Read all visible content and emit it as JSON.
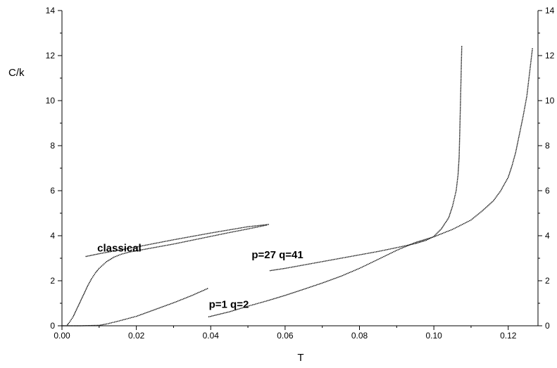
{
  "chart_data": {
    "type": "scatter",
    "xlabel": "T",
    "ylabel": "C/k",
    "xlim": [
      0,
      0.128
    ],
    "ylim": [
      0,
      14
    ],
    "x_ticks": [
      "0.00",
      "0.02",
      "0.04",
      "0.06",
      "0.08",
      "0.10",
      "0.12"
    ],
    "y_ticks": [
      "0",
      "2",
      "4",
      "6",
      "8",
      "10",
      "12",
      "14"
    ],
    "right_y_ticks": [
      "0",
      "2",
      "4",
      "6",
      "8",
      "10",
      "12",
      "14"
    ],
    "grid": false,
    "annotations": [
      {
        "text": "classical",
        "x": 0.0095,
        "y": 3.3
      },
      {
        "text": "p=27 q=41",
        "x": 0.051,
        "y": 3.0
      },
      {
        "text": "p=1 q=2",
        "x": 0.0395,
        "y": 0.8
      }
    ],
    "series": [
      {
        "points": [
          [
            0.0065,
            3.08
          ],
          [
            0.01,
            3.2
          ],
          [
            0.015,
            3.35
          ],
          [
            0.02,
            3.5
          ],
          [
            0.025,
            3.66
          ],
          [
            0.03,
            3.82
          ],
          [
            0.035,
            3.97
          ],
          [
            0.04,
            4.12
          ],
          [
            0.045,
            4.26
          ],
          [
            0.05,
            4.4
          ],
          [
            0.0555,
            4.5
          ]
        ]
      },
      {
        "points": [
          [
            0.0015,
            0.05
          ],
          [
            0.002,
            0.15
          ],
          [
            0.003,
            0.4
          ],
          [
            0.004,
            0.75
          ],
          [
            0.005,
            1.1
          ],
          [
            0.006,
            1.45
          ],
          [
            0.007,
            1.8
          ],
          [
            0.008,
            2.1
          ],
          [
            0.009,
            2.35
          ],
          [
            0.01,
            2.55
          ],
          [
            0.012,
            2.85
          ],
          [
            0.014,
            3.05
          ],
          [
            0.016,
            3.18
          ],
          [
            0.018,
            3.27
          ],
          [
            0.02,
            3.33
          ],
          [
            0.025,
            3.48
          ],
          [
            0.03,
            3.63
          ],
          [
            0.035,
            3.8
          ],
          [
            0.04,
            3.97
          ],
          [
            0.045,
            4.14
          ],
          [
            0.05,
            4.3
          ],
          [
            0.055,
            4.47
          ]
        ]
      },
      {
        "points": [
          [
            0.056,
            2.45
          ],
          [
            0.06,
            2.55
          ],
          [
            0.065,
            2.7
          ],
          [
            0.07,
            2.85
          ],
          [
            0.075,
            3.0
          ],
          [
            0.08,
            3.15
          ],
          [
            0.085,
            3.3
          ],
          [
            0.09,
            3.47
          ],
          [
            0.095,
            3.65
          ],
          [
            0.098,
            3.8
          ],
          [
            0.1,
            3.97
          ],
          [
            0.102,
            4.3
          ],
          [
            0.104,
            4.8
          ],
          [
            0.105,
            5.3
          ],
          [
            0.106,
            6.0
          ],
          [
            0.1065,
            6.7
          ],
          [
            0.1068,
            7.5
          ],
          [
            0.107,
            8.8
          ],
          [
            0.1075,
            12.4
          ]
        ]
      },
      {
        "points": [
          [
            0.0,
            0.0
          ],
          [
            0.005,
            0.0
          ],
          [
            0.01,
            0.02
          ],
          [
            0.012,
            0.08
          ],
          [
            0.015,
            0.2
          ],
          [
            0.02,
            0.42
          ],
          [
            0.025,
            0.72
          ],
          [
            0.03,
            1.02
          ],
          [
            0.035,
            1.35
          ],
          [
            0.0395,
            1.68
          ],
          [
            0.0395,
            0.4
          ],
          [
            0.045,
            0.62
          ],
          [
            0.05,
            0.87
          ],
          [
            0.055,
            1.1
          ],
          [
            0.06,
            1.35
          ],
          [
            0.065,
            1.62
          ],
          [
            0.07,
            1.9
          ],
          [
            0.075,
            2.2
          ],
          [
            0.08,
            2.55
          ],
          [
            0.085,
            2.95
          ],
          [
            0.09,
            3.35
          ],
          [
            0.095,
            3.7
          ],
          [
            0.1,
            3.95
          ],
          [
            0.105,
            4.28
          ],
          [
            0.11,
            4.7
          ],
          [
            0.113,
            5.1
          ],
          [
            0.116,
            5.55
          ],
          [
            0.118,
            6.0
          ],
          [
            0.12,
            6.6
          ],
          [
            0.121,
            7.1
          ],
          [
            0.122,
            7.7
          ],
          [
            0.123,
            8.5
          ],
          [
            0.124,
            9.3
          ],
          [
            0.125,
            10.2
          ],
          [
            0.1255,
            10.9
          ],
          [
            0.126,
            11.6
          ],
          [
            0.1265,
            12.3
          ]
        ]
      }
    ]
  }
}
